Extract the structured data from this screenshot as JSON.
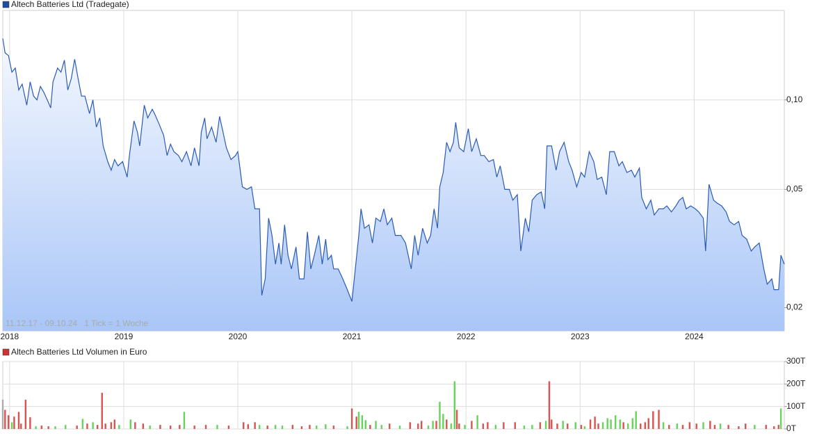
{
  "chart_data": [
    {
      "type": "line",
      "title": "Altech Batteries Ltd (Tradegate)",
      "color": "#1f4e9c",
      "line_color": "#2a5bb5",
      "note": "11.12.17 - 09.10.24   1 Tick = 1 Woche",
      "log_scale": true,
      "grid": true,
      "xlim": [
        2017.94,
        2024.79
      ],
      "xticks": [
        2018,
        2019,
        2020,
        2021,
        2022,
        2023,
        2024
      ],
      "ylim": [
        0.0167,
        0.2
      ],
      "yticks": [
        {
          "value": 0.02,
          "label": "0,02"
        },
        {
          "value": 0.05,
          "label": "0,05"
        },
        {
          "value": 0.1,
          "label": "0,10"
        }
      ],
      "x": [
        2017.94,
        2017.96,
        2017.99,
        2018.02,
        2018.05,
        2018.08,
        2018.11,
        2018.15,
        2018.18,
        2018.21,
        2018.24,
        2018.27,
        2018.3,
        2018.34,
        2018.36,
        2018.38,
        2018.42,
        2018.45,
        2018.48,
        2018.51,
        2018.54,
        2018.57,
        2018.6,
        2018.63,
        2018.66,
        2018.7,
        2018.73,
        2018.76,
        2018.79,
        2018.82,
        2018.86,
        2018.89,
        2018.92,
        2018.95,
        2018.99,
        2019.03,
        2019.05,
        2019.09,
        2019.12,
        2019.14,
        2019.18,
        2019.21,
        2019.25,
        2019.27,
        2019.31,
        2019.35,
        2019.38,
        2019.41,
        2019.44,
        2019.48,
        2019.51,
        2019.55,
        2019.59,
        2019.62,
        2019.66,
        2019.68,
        2019.71,
        2019.73,
        2019.77,
        2019.81,
        2019.84,
        2019.87,
        2019.9,
        2019.94,
        2019.98,
        2020.0,
        2020.04,
        2020.08,
        2020.12,
        2020.15,
        2020.19,
        2020.21,
        2020.24,
        2020.27,
        2020.3,
        2020.33,
        2020.36,
        2020.38,
        2020.41,
        2020.44,
        2020.47,
        2020.51,
        2020.54,
        2020.58,
        2020.61,
        2020.64,
        2020.67,
        2020.71,
        2020.74,
        2020.77,
        2020.79,
        2020.82,
        2020.84,
        2020.88,
        2020.92,
        2020.96,
        2021.0,
        2021.03,
        2021.06,
        2021.08,
        2021.11,
        2021.15,
        2021.18,
        2021.21,
        2021.25,
        2021.28,
        2021.31,
        2021.35,
        2021.38,
        2021.43,
        2021.47,
        2021.52,
        2021.55,
        2021.58,
        2021.62,
        2021.66,
        2021.69,
        2021.72,
        2021.75,
        2021.77,
        2021.8,
        2021.83,
        2021.86,
        2021.89,
        2021.91,
        2021.94,
        2021.98,
        2022.02,
        2022.05,
        2022.09,
        2022.13,
        2022.16,
        2022.2,
        2022.24,
        2022.27,
        2022.3,
        2022.34,
        2022.38,
        2022.41,
        2022.45,
        2022.48,
        2022.52,
        2022.55,
        2022.58,
        2022.62,
        2022.66,
        2022.69,
        2022.71,
        2022.75,
        2022.79,
        2022.82,
        2022.86,
        2022.9,
        2022.93,
        2022.97,
        2023.01,
        2023.04,
        2023.08,
        2023.12,
        2023.15,
        2023.19,
        2023.23,
        2023.26,
        2023.3,
        2023.34,
        2023.37,
        2023.41,
        2023.45,
        2023.48,
        2023.52,
        2023.54,
        2023.58,
        2023.62,
        2023.65,
        2023.69,
        2023.73,
        2023.76,
        2023.8,
        2023.84,
        2023.87,
        2023.9,
        2023.93,
        2023.97,
        2024.01,
        2024.04,
        2024.08,
        2024.1,
        2024.13,
        2024.17,
        2024.2,
        2024.24,
        2024.28,
        2024.31,
        2024.35,
        2024.39,
        2024.42,
        2024.46,
        2024.5,
        2024.53,
        2024.57,
        2024.61,
        2024.64,
        2024.68,
        2024.7,
        2024.74,
        2024.76,
        2024.79
      ],
      "values": [
        0.161,
        0.144,
        0.141,
        0.124,
        0.128,
        0.108,
        0.113,
        0.096,
        0.115,
        0.103,
        0.1,
        0.111,
        0.106,
        0.098,
        0.094,
        0.115,
        0.128,
        0.124,
        0.136,
        0.108,
        0.118,
        0.137,
        0.118,
        0.103,
        0.103,
        0.09,
        0.1,
        0.081,
        0.087,
        0.07,
        0.062,
        0.058,
        0.063,
        0.06,
        0.062,
        0.055,
        0.065,
        0.085,
        0.078,
        0.07,
        0.096,
        0.087,
        0.093,
        0.09,
        0.083,
        0.076,
        0.065,
        0.071,
        0.067,
        0.065,
        0.062,
        0.067,
        0.06,
        0.069,
        0.06,
        0.078,
        0.087,
        0.074,
        0.081,
        0.072,
        0.088,
        0.078,
        0.069,
        0.063,
        0.065,
        0.067,
        0.051,
        0.05,
        0.051,
        0.043,
        0.043,
        0.022,
        0.025,
        0.04,
        0.035,
        0.028,
        0.033,
        0.028,
        0.038,
        0.03,
        0.027,
        0.032,
        0.025,
        0.025,
        0.036,
        0.027,
        0.03,
        0.035,
        0.028,
        0.034,
        0.029,
        0.03,
        0.027,
        0.027,
        0.025,
        0.023,
        0.021,
        0.027,
        0.035,
        0.043,
        0.037,
        0.038,
        0.033,
        0.04,
        0.039,
        0.043,
        0.038,
        0.04,
        0.035,
        0.035,
        0.033,
        0.027,
        0.035,
        0.03,
        0.037,
        0.033,
        0.035,
        0.043,
        0.037,
        0.051,
        0.057,
        0.072,
        0.067,
        0.072,
        0.084,
        0.069,
        0.067,
        0.08,
        0.067,
        0.074,
        0.065,
        0.065,
        0.062,
        0.063,
        0.055,
        0.06,
        0.05,
        0.05,
        0.046,
        0.048,
        0.031,
        0.04,
        0.036,
        0.046,
        0.048,
        0.049,
        0.043,
        0.07,
        0.07,
        0.058,
        0.067,
        0.072,
        0.062,
        0.058,
        0.051,
        0.057,
        0.055,
        0.067,
        0.062,
        0.054,
        0.055,
        0.048,
        0.067,
        0.067,
        0.06,
        0.062,
        0.057,
        0.058,
        0.055,
        0.059,
        0.047,
        0.043,
        0.046,
        0.041,
        0.043,
        0.043,
        0.044,
        0.042,
        0.044,
        0.046,
        0.047,
        0.043,
        0.044,
        0.043,
        0.042,
        0.04,
        0.031,
        0.052,
        0.046,
        0.045,
        0.044,
        0.042,
        0.039,
        0.038,
        0.039,
        0.035,
        0.034,
        0.031,
        0.032,
        0.033,
        0.027,
        0.024,
        0.025,
        0.023,
        0.023,
        0.03,
        0.028
      ]
    },
    {
      "type": "bar",
      "title": "Altech Batteries Ltd Volumen in Euro",
      "color": "#cc3333",
      "grid": true,
      "xlim": [
        2017.94,
        2024.79
      ],
      "ylim": [
        0,
        300000
      ],
      "yticks": [
        {
          "value": 0,
          "label": "0T"
        },
        {
          "value": 100000,
          "label": "100T"
        },
        {
          "value": 200000,
          "label": "200T"
        },
        {
          "value": 300000,
          "label": "300T"
        }
      ],
      "x": [
        2017.94,
        2017.96,
        2017.99,
        2018.02,
        2018.04,
        2018.08,
        2018.1,
        2018.14,
        2018.18,
        2018.23,
        2018.28,
        2018.34,
        2018.4,
        2018.49,
        2018.59,
        2018.64,
        2018.68,
        2018.73,
        2018.77,
        2018.81,
        2018.84,
        2018.89,
        2018.92,
        2018.96,
        2019.06,
        2019.1,
        2019.17,
        2019.23,
        2019.32,
        2019.41,
        2019.49,
        2019.53,
        2019.62,
        2019.72,
        2019.82,
        2019.92,
        2020.05,
        2020.09,
        2020.15,
        2020.19,
        2020.26,
        2020.33,
        2020.39,
        2020.48,
        2020.56,
        2020.63,
        2020.69,
        2020.77,
        2020.84,
        2020.96,
        2021.0,
        2021.04,
        2021.06,
        2021.09,
        2021.12,
        2021.16,
        2021.21,
        2021.26,
        2021.33,
        2021.42,
        2021.51,
        2021.58,
        2021.61,
        2021.67,
        2021.71,
        2021.74,
        2021.77,
        2021.8,
        2021.83,
        2021.87,
        2021.9,
        2021.92,
        2021.94,
        2021.99,
        2022.05,
        2022.1,
        2022.15,
        2022.19,
        2022.26,
        2022.33,
        2022.43,
        2022.51,
        2022.58,
        2022.65,
        2022.7,
        2022.73,
        2022.75,
        2022.8,
        2022.85,
        2022.89,
        2022.96,
        2023.01,
        2023.04,
        2023.09,
        2023.13,
        2023.16,
        2023.2,
        2023.24,
        2023.27,
        2023.31,
        2023.35,
        2023.38,
        2023.42,
        2023.46,
        2023.49,
        2023.53,
        2023.57,
        2023.6,
        2023.64,
        2023.69,
        2023.73,
        2023.78,
        2023.85,
        2023.9,
        2023.96,
        2024.02,
        2024.08,
        2024.14,
        2024.18,
        2024.23,
        2024.3,
        2024.39,
        2024.45,
        2024.53,
        2024.63,
        2024.7,
        2024.74,
        2024.76
      ],
      "values": [
        130000,
        85000,
        61000,
        30000,
        55000,
        76000,
        24000,
        130000,
        52000,
        12000,
        15000,
        12000,
        12000,
        18000,
        15000,
        45000,
        24000,
        30000,
        18000,
        161000,
        24000,
        30000,
        42000,
        18000,
        42000,
        30000,
        24000,
        15000,
        18000,
        15000,
        18000,
        76000,
        15000,
        18000,
        18000,
        15000,
        30000,
        21000,
        30000,
        18000,
        15000,
        18000,
        15000,
        18000,
        12000,
        18000,
        15000,
        21000,
        15000,
        12000,
        91000,
        55000,
        76000,
        61000,
        39000,
        18000,
        36000,
        18000,
        24000,
        15000,
        30000,
        24000,
        36000,
        15000,
        36000,
        36000,
        121000,
        67000,
        42000,
        24000,
        212000,
        85000,
        24000,
        18000,
        36000,
        61000,
        24000,
        30000,
        18000,
        30000,
        30000,
        15000,
        18000,
        30000,
        36000,
        212000,
        42000,
        24000,
        36000,
        24000,
        30000,
        18000,
        12000,
        42000,
        55000,
        24000,
        30000,
        48000,
        42000,
        61000,
        42000,
        30000,
        24000,
        48000,
        79000,
        24000,
        30000,
        48000,
        79000,
        85000,
        30000,
        18000,
        24000,
        18000,
        30000,
        24000,
        30000,
        36000,
        18000,
        24000,
        18000,
        12000,
        24000,
        18000,
        18000,
        12000,
        18000,
        91000
      ],
      "bar_colors": [
        "#aaaaaa",
        "#d9534f",
        "#d9534f",
        "#66d45a",
        "#d9534f",
        "#d9534f",
        "#d9534f",
        "#d9534f",
        "#d9534f",
        "#66d45a",
        "#d9534f",
        "#d9534f",
        "#66d45a",
        "#66d45a",
        "#d9534f",
        "#66d45a",
        "#d9534f",
        "#66d45a",
        "#d9534f",
        "#d9534f",
        "#d9534f",
        "#d9534f",
        "#d9534f",
        "#66d45a",
        "#66d45a",
        "#d9534f",
        "#d9534f",
        "#66d45a",
        "#d9534f",
        "#d9534f",
        "#d9534f",
        "#66d45a",
        "#d9534f",
        "#d9534f",
        "#66d45a",
        "#d9534f",
        "#d9534f",
        "#d9534f",
        "#d9534f",
        "#66d45a",
        "#d9534f",
        "#66d45a",
        "#66d45a",
        "#d9534f",
        "#d9534f",
        "#d9534f",
        "#66d45a",
        "#66d45a",
        "#d9534f",
        "#66d45a",
        "#d9534f",
        "#d9534f",
        "#66d45a",
        "#66d45a",
        "#66d45a",
        "#d9534f",
        "#66d45a",
        "#66d45a",
        "#d9534f",
        "#66d45a",
        "#d9534f",
        "#d9534f",
        "#d9534f",
        "#66d45a",
        "#66d45a",
        "#d9534f",
        "#66d45a",
        "#66d45a",
        "#d9534f",
        "#66d45a",
        "#66d45a",
        "#d9534f",
        "#d9534f",
        "#66d45a",
        "#d9534f",
        "#66d45a",
        "#d9534f",
        "#d9534f",
        "#66d45a",
        "#d9534f",
        "#d9534f",
        "#66d45a",
        "#66d45a",
        "#d9534f",
        "#66d45a",
        "#d9534f",
        "#d9534f",
        "#d9534f",
        "#66d45a",
        "#d9534f",
        "#66d45a",
        "#d9534f",
        "#66d45a",
        "#d9534f",
        "#d9534f",
        "#d9534f",
        "#66d45a",
        "#66d45a",
        "#66d45a",
        "#66d45a",
        "#66d45a",
        "#d9534f",
        "#66d45a",
        "#66d45a",
        "#66d45a",
        "#d9534f",
        "#d9534f",
        "#d9534f",
        "#d9534f",
        "#d9534f",
        "#66d45a",
        "#d9534f",
        "#66d45a",
        "#d9534f",
        "#d9534f",
        "#d9534f",
        "#66d45a",
        "#d9534f",
        "#d9534f",
        "#66d45a",
        "#d9534f",
        "#d9534f",
        "#d9534f",
        "#66d45a",
        "#d9534f",
        "#d9534f",
        "#d9534f",
        "#66d45a"
      ]
    }
  ]
}
